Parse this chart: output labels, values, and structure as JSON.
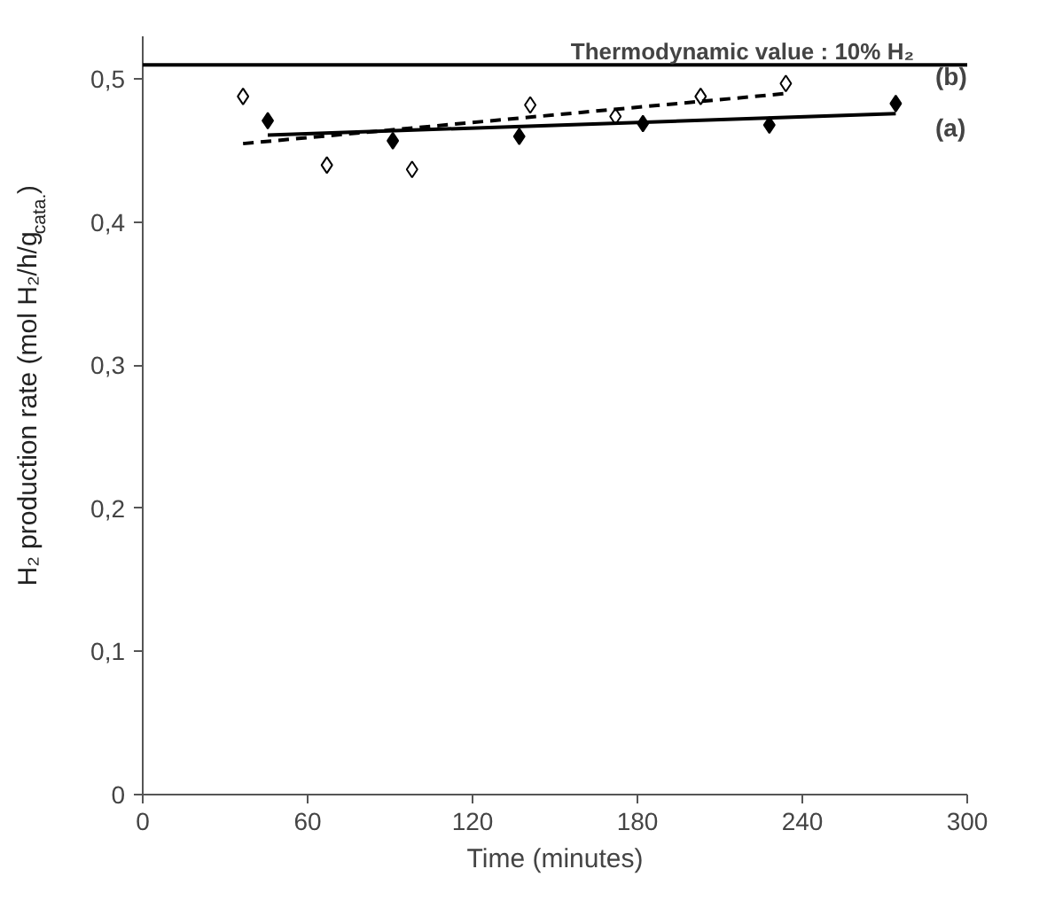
{
  "chart_data": {
    "type": "scatter",
    "xlabel": "Time (minutes)",
    "ylabel": "H₂ production rate (mol H₂/h/g$_{cata.}$)",
    "xlim": [
      0,
      300
    ],
    "xticks": [
      0,
      60,
      120,
      180,
      240,
      300
    ],
    "ylim": [
      0,
      0.53
    ],
    "yticks": [
      {
        "value": 0,
        "label": "0"
      },
      {
        "value": 0.1,
        "label": "0,1"
      },
      {
        "value": 0.2,
        "label": "0,2"
      },
      {
        "value": 0.3,
        "label": "0,3"
      },
      {
        "value": 0.4,
        "label": "0,4"
      },
      {
        "value": 0.5,
        "label": "0,5"
      }
    ],
    "grid": false,
    "marker": "diamond",
    "annotations": [
      "Thermodynamic value : 10% H₂"
    ],
    "series": [
      {
        "color": "#000000",
        "x": [
          45.5,
          91,
          137,
          182,
          228,
          274
        ],
        "values": [
          0.471,
          0.457,
          0.46,
          0.469,
          0.468,
          0.483
        ]
      },
      {
        "color": "#000000",
        "x": [
          36.5,
          67,
          98,
          141,
          172,
          203,
          234
        ],
        "values": [
          0.488,
          0.44,
          0.437,
          0.482,
          0.474,
          0.488,
          0.497
        ]
      },
      {
        "type": "line",
        "name": "(a)",
        "color": "#000000",
        "marker": "none",
        "line_style": "solid",
        "x": [
          45.5,
          274
        ],
        "values": [
          0.461,
          0.476
        ]
      },
      {
        "type": "line",
        "name": "(b)",
        "color": "#000000",
        "marker": "none",
        "line_style": "dashed",
        "x": [
          36.5,
          234
        ],
        "values": [
          0.455,
          0.49
        ]
      }
    ],
    "ref_lines": [
      {
        "axis": "y",
        "value": 0.51,
        "color": "#000000"
      }
    ]
  }
}
